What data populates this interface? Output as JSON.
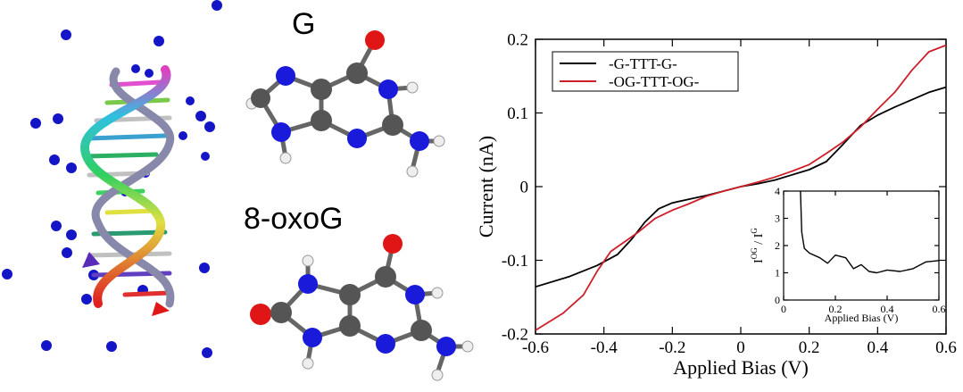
{
  "molecules": {
    "guanine_label": "G",
    "oxoguanine_label": "8-oxoG"
  },
  "colors": {
    "series_g": "#000000",
    "series_og": "#cc1f2a",
    "nitrogen": "#1a1adb",
    "carbon": "#555555",
    "oxygen": "#e01515",
    "hydrogen": "#f2f2f2"
  },
  "chart_data": [
    {
      "type": "line",
      "xlabel": "Applied Bias (V)",
      "ylabel": "Current (nA)",
      "xlim": [
        -0.6,
        0.6
      ],
      "ylim": [
        -0.2,
        0.2
      ],
      "xticks": [
        "-0.6",
        "-0.4",
        "-0.2",
        "0",
        "0.2",
        "0.4",
        "0.6"
      ],
      "yticks": [
        "-0.2",
        "-0.1",
        "0",
        "0.1",
        "0.2"
      ],
      "legend": "top-left",
      "series": [
        {
          "name": "-G-TTT-G-",
          "color": "#000000",
          "x": [
            -0.6,
            -0.5,
            -0.42,
            -0.36,
            -0.32,
            -0.28,
            -0.24,
            -0.2,
            -0.15,
            -0.1,
            -0.05,
            0,
            0.05,
            0.1,
            0.15,
            0.2,
            0.25,
            0.3,
            0.35,
            0.4,
            0.45,
            0.5,
            0.55,
            0.6
          ],
          "y": [
            -0.136,
            -0.122,
            -0.107,
            -0.092,
            -0.072,
            -0.048,
            -0.03,
            -0.022,
            -0.017,
            -0.012,
            -0.006,
            0.0,
            0.004,
            0.009,
            0.016,
            0.023,
            0.034,
            0.058,
            0.083,
            0.097,
            0.108,
            0.118,
            0.128,
            0.135
          ]
        },
        {
          "name": "-OG-TTT-OG-",
          "color": "#cc1f2a",
          "x": [
            -0.6,
            -0.52,
            -0.46,
            -0.42,
            -0.38,
            -0.34,
            -0.3,
            -0.25,
            -0.2,
            -0.15,
            -0.1,
            -0.05,
            0,
            0.05,
            0.1,
            0.15,
            0.2,
            0.25,
            0.3,
            0.35,
            0.4,
            0.45,
            0.5,
            0.55,
            0.6
          ],
          "y": [
            -0.195,
            -0.172,
            -0.147,
            -0.115,
            -0.088,
            -0.075,
            -0.062,
            -0.043,
            -0.032,
            -0.023,
            -0.013,
            -0.006,
            0.0,
            0.006,
            0.013,
            0.021,
            0.03,
            0.045,
            0.061,
            0.081,
            0.105,
            0.128,
            0.158,
            0.183,
            0.192
          ]
        }
      ]
    },
    {
      "type": "line",
      "xlabel": "Applied Bias (V)",
      "ylabel": "I^OG / I^G",
      "xlim": [
        0,
        0.6
      ],
      "ylim": [
        0,
        4
      ],
      "xticks": [
        "0",
        "0.2",
        "0.4",
        "0.6"
      ],
      "yticks": [
        "0",
        "1",
        "2",
        "3",
        "4"
      ],
      "series": [
        {
          "color": "#000000",
          "x": [
            0.065,
            0.07,
            0.08,
            0.1,
            0.14,
            0.17,
            0.2,
            0.24,
            0.27,
            0.3,
            0.33,
            0.36,
            0.4,
            0.45,
            0.5,
            0.55,
            0.6
          ],
          "y": [
            4.0,
            2.5,
            1.9,
            1.72,
            1.55,
            1.35,
            1.65,
            1.55,
            1.15,
            1.3,
            1.05,
            1.0,
            1.1,
            1.05,
            1.15,
            1.4,
            1.45
          ]
        }
      ]
    }
  ]
}
